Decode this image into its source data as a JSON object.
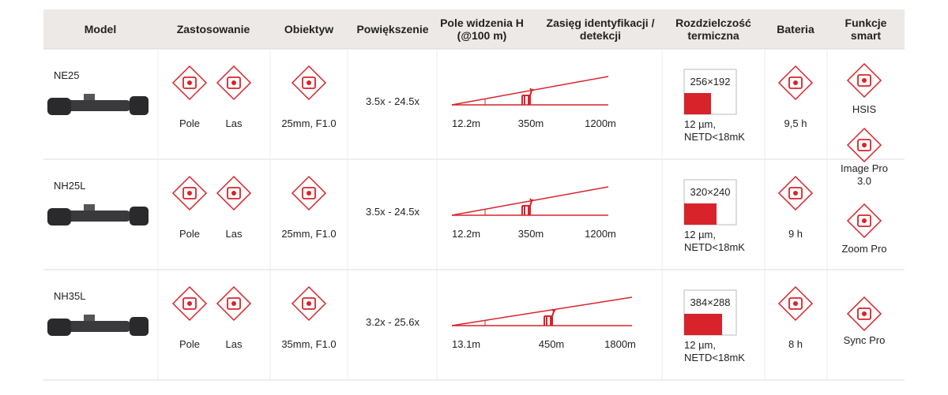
{
  "header": {
    "columns": [
      "Model",
      "Zastosowanie",
      "Obiektyw",
      "Powiększenie",
      "Pole widzenia H (@100 m)",
      "Zasięg identyfikacji / detekcji",
      "Rozdzielczość termiczna",
      "Bateria",
      "Funkcje smart"
    ]
  },
  "rows": [
    {
      "model": "NE25",
      "uses": [
        "Pole",
        "Las"
      ],
      "lens": "25mm, F1.0",
      "zoom": "3.5x - 24.5x",
      "fov": "12.2m",
      "identification": "350m",
      "detection": "1200m",
      "resolution": "256×192",
      "pixel": "12 µm,",
      "netd": "NETD<18mK",
      "battery": "9,5 h"
    },
    {
      "model": "NH25L",
      "uses": [
        "Pole",
        "Las"
      ],
      "lens": "25mm, F1.0",
      "zoom": "3.5x - 24.5x",
      "fov": "12.2m",
      "identification": "350m",
      "detection": "1200m",
      "resolution": "320×240",
      "pixel": "12 µm,",
      "netd": "NETD<18mK",
      "battery": "9 h"
    },
    {
      "model": "NH35L",
      "uses": [
        "Pole",
        "Las"
      ],
      "lens": "35mm, F1.0",
      "zoom": "3.2x - 25.6x",
      "fov": "13.1m",
      "identification": "450m",
      "detection": "1800m",
      "resolution": "384×288",
      "pixel": "12 µm,",
      "netd": "NETD<18mK",
      "battery": "8 h"
    }
  ],
  "functions": [
    "HSIS",
    "Image Pro 3.0",
    "Zoom Pro",
    "Sync Pro"
  ]
}
